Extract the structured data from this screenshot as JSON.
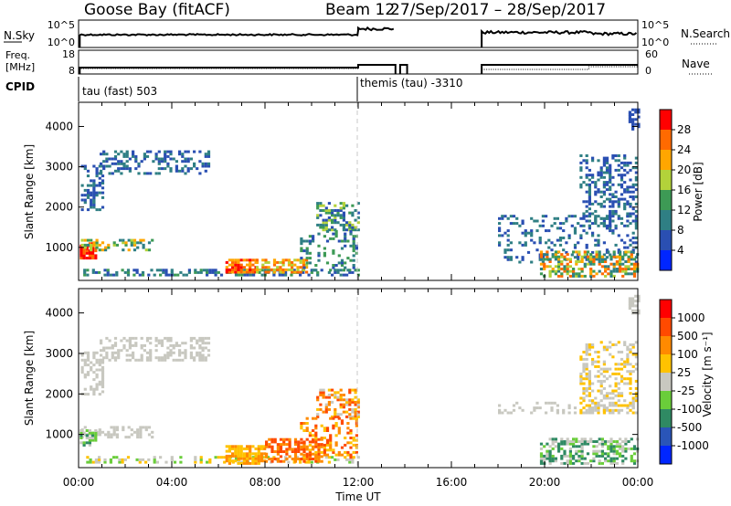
{
  "header": {
    "station": "Goose Bay (fitACF)",
    "beam": "Beam 12",
    "daterange": "27/Sep/2017 – 28/Sep/2017"
  },
  "top_panels": {
    "nsky_label": "N.Sky",
    "nsky_ticks": [
      "10^5",
      "10^0"
    ],
    "nsearch_ticks": [
      "10^5",
      "10^0"
    ],
    "nsearch_label": "N.Search",
    "freq_label_1": "Freq.",
    "freq_label_2": "[MHz]",
    "freq_ticks": [
      "18",
      "8"
    ],
    "nave_ticks": [
      "60",
      "0"
    ],
    "nave_label": "Nave",
    "cpid_label": "CPID",
    "cpid_modes": [
      {
        "name": "tau (fast) 503",
        "start_hour": 0.05
      },
      {
        "name": "themis (tau) -3310",
        "start_hour": 12.0
      }
    ]
  },
  "power_colorbar": {
    "label": "Power [dB]",
    "ticks": [
      "28",
      "24",
      "20",
      "16",
      "12",
      "8",
      "4"
    ],
    "colors": [
      "#0026ff",
      "#2a4fb2",
      "#2f7f84",
      "#3d9a55",
      "#b3d23a",
      "#ffa600",
      "#ff6a00",
      "#ff0000"
    ]
  },
  "velocity_colorbar": {
    "label": "Velocity [m s⁻¹]",
    "ticks": [
      "1000",
      "500",
      "100",
      "25",
      "-25",
      "-100",
      "-500",
      "-1000"
    ],
    "colors": [
      "#0026ff",
      "#2a55b8",
      "#2f8a63",
      "#6acd3a",
      "#c8c8c0",
      "#ffc200",
      "#ff8a00",
      "#ff4a00",
      "#ff0000"
    ]
  },
  "chart_data": [
    {
      "type": "heatmap",
      "name": "power",
      "xlabel": "",
      "ylabel": "Slant Range [km]",
      "xlim": [
        0,
        24
      ],
      "ylim": [
        180,
        4600
      ],
      "yticks": [
        "1000",
        "2000",
        "3000",
        "4000"
      ],
      "xticks": [
        "00:00",
        "04:00",
        "08:00",
        "12:00",
        "16:00",
        "20:00",
        "00:00"
      ],
      "regions": [
        {
          "t": [
            0.05,
            0.7
          ],
          "r": [
            700,
            1100
          ],
          "c": [
            6,
            7
          ],
          "d": 0.7
        },
        {
          "t": [
            0.1,
            3.2
          ],
          "r": [
            900,
            1200
          ],
          "c": [
            2,
            5
          ],
          "d": 0.45
        },
        {
          "t": [
            0.1,
            1.0
          ],
          "r": [
            1900,
            3000
          ],
          "c": [
            1,
            2
          ],
          "d": 0.35
        },
        {
          "t": [
            0.9,
            5.6
          ],
          "r": [
            2800,
            3400
          ],
          "c": [
            1,
            2
          ],
          "d": 0.35
        },
        {
          "t": [
            0.2,
            12.0
          ],
          "r": [
            220,
            420
          ],
          "c": [
            1,
            3
          ],
          "d": 0.45
        },
        {
          "t": [
            6.3,
            7.6
          ],
          "r": [
            350,
            680
          ],
          "c": [
            5,
            7
          ],
          "d": 0.75
        },
        {
          "t": [
            7.6,
            9.8
          ],
          "r": [
            350,
            700
          ],
          "c": [
            4,
            6
          ],
          "d": 0.6
        },
        {
          "t": [
            10.2,
            12.0
          ],
          "r": [
            1400,
            2100
          ],
          "c": [
            1,
            4
          ],
          "d": 0.5
        },
        {
          "t": [
            9.5,
            12.0
          ],
          "r": [
            400,
            1400
          ],
          "c": [
            1,
            3
          ],
          "d": 0.3
        },
        {
          "t": [
            18.0,
            24.0
          ],
          "r": [
            600,
            1800
          ],
          "c": [
            1,
            2
          ],
          "d": 0.2
        },
        {
          "t": [
            19.8,
            24.0
          ],
          "r": [
            250,
            900
          ],
          "c": [
            2,
            6
          ],
          "d": 0.55
        },
        {
          "t": [
            21.5,
            24.0
          ],
          "r": [
            1500,
            3300
          ],
          "c": [
            1,
            2
          ],
          "d": 0.35
        },
        {
          "t": [
            23.6,
            24.0
          ],
          "r": [
            3900,
            4400
          ],
          "c": [
            1,
            1
          ],
          "d": 0.5
        }
      ]
    },
    {
      "type": "heatmap",
      "name": "velocity",
      "xlabel": "Time UT",
      "ylabel": "Slant Range [km]",
      "xlim": [
        0,
        24
      ],
      "ylim": [
        180,
        4600
      ],
      "yticks": [
        "1000",
        "2000",
        "3000",
        "4000"
      ],
      "xticks": [
        "00:00",
        "04:00",
        "08:00",
        "12:00",
        "16:00",
        "20:00",
        "00:00"
      ],
      "regions": [
        {
          "t": [
            0.1,
            3.2
          ],
          "r": [
            900,
            1200
          ],
          "c": [
            4,
            4
          ],
          "d": 0.55
        },
        {
          "t": [
            0.1,
            1.0
          ],
          "r": [
            1900,
            3000
          ],
          "c": [
            4,
            4
          ],
          "d": 0.45
        },
        {
          "t": [
            0.9,
            5.6
          ],
          "r": [
            2800,
            3400
          ],
          "c": [
            4,
            4
          ],
          "d": 0.45
        },
        {
          "t": [
            0.05,
            0.7
          ],
          "r": [
            700,
            1100
          ],
          "c": [
            2,
            4
          ],
          "d": 0.6
        },
        {
          "t": [
            0.2,
            12.0
          ],
          "r": [
            220,
            420
          ],
          "c": [
            3,
            5
          ],
          "d": 0.3
        },
        {
          "t": [
            6.3,
            8.0
          ],
          "r": [
            250,
            700
          ],
          "c": [
            5,
            6
          ],
          "d": 0.75
        },
        {
          "t": [
            8.0,
            10.5
          ],
          "r": [
            300,
            900
          ],
          "c": [
            6,
            7
          ],
          "d": 0.6
        },
        {
          "t": [
            10.2,
            12.0
          ],
          "r": [
            1400,
            2100
          ],
          "c": [
            4,
            7
          ],
          "d": 0.5
        },
        {
          "t": [
            9.5,
            12.0
          ],
          "r": [
            400,
            1400
          ],
          "c": [
            5,
            7
          ],
          "d": 0.3
        },
        {
          "t": [
            18.0,
            24.0
          ],
          "r": [
            1500,
            1800
          ],
          "c": [
            4,
            4
          ],
          "d": 0.3
        },
        {
          "t": [
            19.8,
            24.0
          ],
          "r": [
            250,
            900
          ],
          "c": [
            2,
            4
          ],
          "d": 0.55
        },
        {
          "t": [
            21.5,
            24.0
          ],
          "r": [
            1500,
            3300
          ],
          "c": [
            4,
            5
          ],
          "d": 0.35
        },
        {
          "t": [
            23.6,
            24.0
          ],
          "r": [
            3900,
            4400
          ],
          "c": [
            4,
            4
          ],
          "d": 0.5
        }
      ]
    }
  ]
}
